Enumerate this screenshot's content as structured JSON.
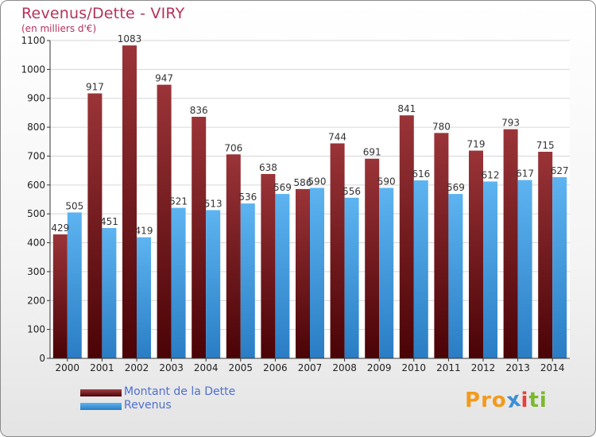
{
  "title": "Revenus/Dette - VIRY",
  "subtitle": "(en milliers d'€)",
  "legend": [
    {
      "label": "Montant de la Dette",
      "color": "#6b0f12"
    },
    {
      "label": "Revenus",
      "color": "#3f9fe0"
    }
  ],
  "logo": {
    "text": "Proxiti",
    "letters": [
      "P",
      "r",
      "o",
      "x",
      "i",
      "t",
      "i"
    ],
    "colors": [
      "#f39a1c",
      "#f39a1c",
      "#f39a1c",
      "#3c8fd6",
      "#e6403c",
      "#7ab92e",
      "#7ab92e"
    ]
  },
  "chart_data": {
    "type": "bar",
    "title": "Revenus/Dette - VIRY",
    "subtitle": "(en milliers d'€)",
    "categories": [
      "2000",
      "2001",
      "2002",
      "2003",
      "2004",
      "2005",
      "2006",
      "2007",
      "2008",
      "2009",
      "2010",
      "2011",
      "2012",
      "2013",
      "2014"
    ],
    "series": [
      {
        "name": "Montant de la Dette",
        "color": "#7a1e22",
        "values": [
          429,
          917,
          1083,
          947,
          836,
          706,
          638,
          586,
          744,
          691,
          841,
          780,
          719,
          793,
          715
        ]
      },
      {
        "name": "Revenus",
        "color": "#4aa6e8",
        "values": [
          505,
          451,
          419,
          521,
          513,
          536,
          569,
          590,
          556,
          590,
          616,
          569,
          612,
          617,
          627
        ]
      }
    ],
    "ylim": [
      0,
      1100
    ],
    "yticks": [
      0,
      100,
      200,
      300,
      400,
      500,
      600,
      700,
      800,
      900,
      1000,
      1100
    ],
    "grid": true,
    "legend_position": "bottom-left"
  }
}
